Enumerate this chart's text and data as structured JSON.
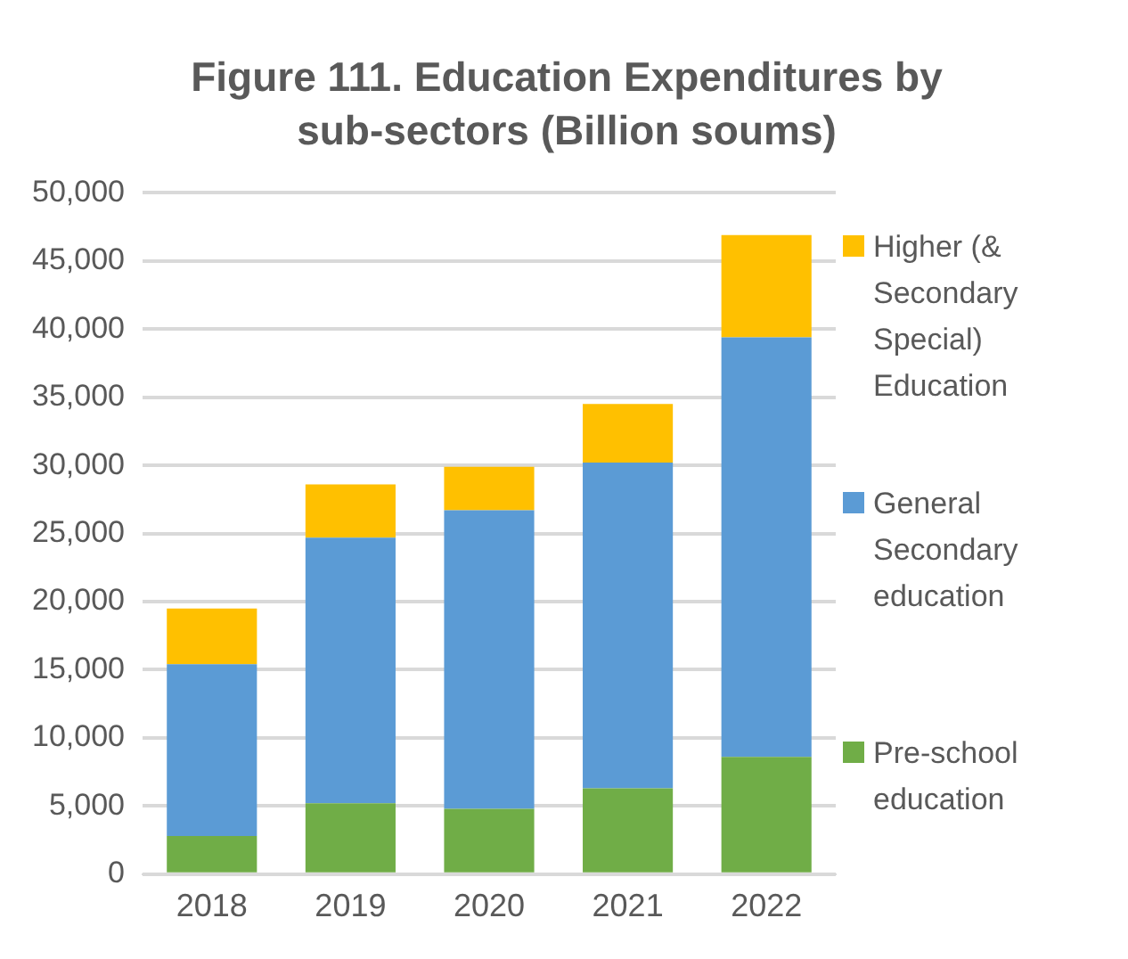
{
  "chart_data": {
    "type": "bar",
    "title": "Figure 111. Education Expenditures by sub-sectors (Billion soums)",
    "categories": [
      "2018",
      "2019",
      "2020",
      "2021",
      "2022"
    ],
    "series": [
      {
        "name": "Pre-school education",
        "color": "#70ad47",
        "values": [
          2800,
          5200,
          4800,
          6300,
          8600
        ]
      },
      {
        "name": "General Secondary education",
        "color": "#5b9bd5",
        "values": [
          12600,
          19500,
          21900,
          23900,
          30800
        ]
      },
      {
        "name": "Higher (& Secondary Special) Education",
        "color": "#ffc000",
        "values": [
          4100,
          3900,
          3200,
          4300,
          7500
        ]
      }
    ],
    "stacked": true,
    "ylim": [
      0,
      50000
    ],
    "yticks": [
      0,
      {
        "value": 5000,
        "label": "5,000"
      },
      {
        "value": 10000,
        "label": "10,000"
      },
      {
        "value": 15000,
        "label": "15,000"
      },
      {
        "value": 20000,
        "label": "20,000"
      },
      {
        "value": 25000,
        "label": "25,000"
      },
      {
        "value": 30000,
        "label": "30,000"
      },
      {
        "value": 35000,
        "label": "35,000"
      },
      {
        "value": 40000,
        "label": "40,000"
      },
      {
        "value": 45000,
        "label": "45,000"
      },
      {
        "value": 50000,
        "label": "50,000"
      }
    ],
    "grid": "y",
    "legend": "right"
  }
}
